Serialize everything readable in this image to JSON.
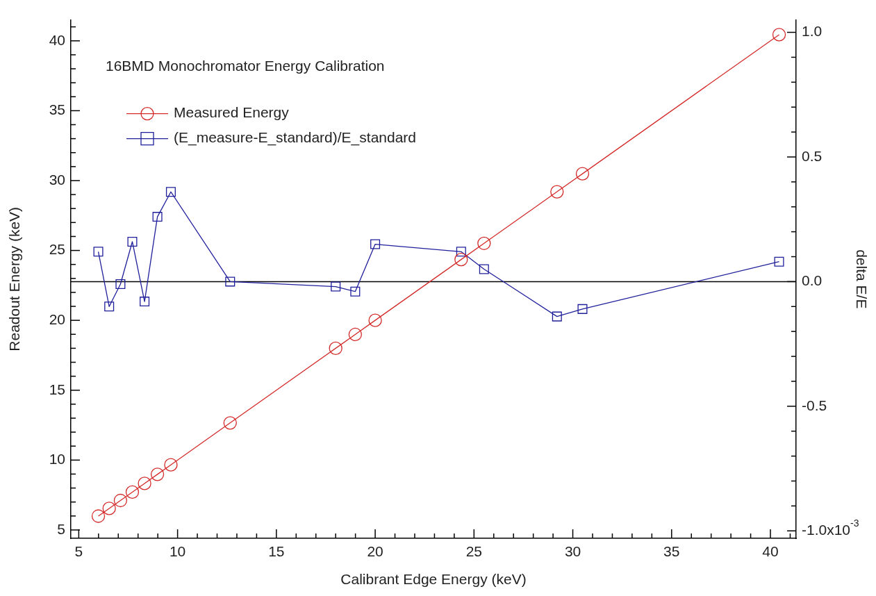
{
  "chart_data": {
    "type": "line",
    "title": "16BMD Monochromator Energy Calibration",
    "xlabel": "Calibrant Edge Energy (keV)",
    "ylabel": "Readout Energy (keV)",
    "y2label": "delta E/E",
    "series": [
      {
        "name": "Measured Energy",
        "color": "#d42a2a",
        "marker": "circle",
        "x": [
          5.99,
          6.54,
          7.11,
          7.71,
          8.33,
          8.98,
          9.66,
          12.66,
          18.0,
          18.99,
          20.0,
          24.35,
          25.51,
          29.2,
          30.49,
          40.44
        ],
        "values": [
          5.99,
          6.54,
          7.11,
          7.71,
          8.33,
          8.98,
          9.66,
          12.66,
          18.0,
          18.99,
          20.0,
          24.35,
          25.51,
          29.2,
          30.49,
          40.44
        ]
      },
      {
        "name": "(E_measure-E_standard)/E_standard",
        "color": "#1f1f9c",
        "marker": "square",
        "axis": "y2",
        "x": [
          5.99,
          6.54,
          7.11,
          7.71,
          8.33,
          8.98,
          9.66,
          12.66,
          18.0,
          18.99,
          20.0,
          24.35,
          25.51,
          29.2,
          30.49,
          40.44
        ],
        "values": [
          0.12,
          -0.1,
          -0.01,
          0.16,
          -0.08,
          0.26,
          0.36,
          0.0,
          -0.02,
          -0.04,
          0.15,
          0.12,
          0.05,
          -0.14,
          -0.11,
          0.08
        ]
      }
    ],
    "xlim": [
      4.6,
      41.3
    ],
    "ylim": [
      4.4,
      41.5
    ],
    "y2lim": [
      -1.03,
      1.05
    ],
    "annotations": [
      "x10$^{-3}$"
    ],
    "xticks": [
      5,
      {
        "value": 6,
        "label": null
      },
      {
        "value": 7,
        "label": null
      },
      {
        "value": 8,
        "label": null
      },
      {
        "value": 9,
        "label": null
      },
      10,
      {
        "value": 11,
        "label": null
      },
      {
        "value": 12,
        "label": null
      },
      {
        "value": 13,
        "label": null
      },
      {
        "value": 14,
        "label": null
      },
      15,
      {
        "value": 16,
        "label": null
      },
      {
        "value": 17,
        "label": null
      },
      {
        "value": 18,
        "label": null
      },
      {
        "value": 19,
        "label": null
      },
      20,
      {
        "value": 21,
        "label": null
      },
      {
        "value": 22,
        "label": null
      },
      {
        "value": 23,
        "label": null
      },
      {
        "value": 24,
        "label": null
      },
      25,
      {
        "value": 26,
        "label": null
      },
      {
        "value": 27,
        "label": null
      },
      {
        "value": 28,
        "label": null
      },
      {
        "value": 29,
        "label": null
      },
      30,
      {
        "value": 31,
        "label": null
      },
      {
        "value": 32,
        "label": null
      },
      {
        "value": 33,
        "label": null
      },
      {
        "value": 34,
        "label": null
      },
      35,
      {
        "value": 36,
        "label": null
      },
      {
        "value": 37,
        "label": null
      },
      {
        "value": 38,
        "label": null
      },
      {
        "value": 39,
        "label": null
      },
      40,
      {
        "value": 41,
        "label": null
      }
    ],
    "yticks": [
      5,
      {
        "value": 6,
        "label": null
      },
      {
        "value": 7,
        "label": null
      },
      {
        "value": 8,
        "label": null
      },
      {
        "value": 9,
        "label": null
      },
      10,
      {
        "value": 11,
        "label": null
      },
      {
        "value": 12,
        "label": null
      },
      {
        "value": 13,
        "label": null
      },
      {
        "value": 14,
        "label": null
      },
      15,
      {
        "value": 16,
        "label": null
      },
      {
        "value": 17,
        "label": null
      },
      {
        "value": 18,
        "label": null
      },
      {
        "value": 19,
        "label": null
      },
      20,
      {
        "value": 21,
        "label": null
      },
      {
        "value": 22,
        "label": null
      },
      {
        "value": 23,
        "label": null
      },
      {
        "value": 24,
        "label": null
      },
      25,
      {
        "value": 26,
        "label": null
      },
      {
        "value": 27,
        "label": null
      },
      {
        "value": 28,
        "label": null
      },
      {
        "value": 29,
        "label": null
      },
      30,
      {
        "value": 31,
        "label": null
      },
      {
        "value": 32,
        "label": null
      },
      {
        "value": 33,
        "label": null
      },
      {
        "value": 34,
        "label": null
      },
      35,
      {
        "value": 36,
        "label": null
      },
      {
        "value": 37,
        "label": null
      },
      {
        "value": 38,
        "label": null
      },
      {
        "value": 39,
        "label": null
      },
      40,
      {
        "value": 41,
        "label": null
      }
    ],
    "y2ticks": [
      {
        "value": -1,
        "label": "-1.0"
      },
      {
        "value": -0.9,
        "label": null
      },
      {
        "value": -0.8,
        "label": null
      },
      {
        "value": -0.7,
        "label": null
      },
      {
        "value": -0.6,
        "label": null
      },
      {
        "value": -0.5,
        "label": "-0.5"
      },
      {
        "value": -0.4,
        "label": null
      },
      {
        "value": -0.3,
        "label": null
      },
      {
        "value": -0.2,
        "label": null
      },
      {
        "value": -0.1,
        "label": null
      },
      {
        "value": 0,
        "label": "0.0"
      },
      {
        "value": 0.1,
        "label": null
      },
      {
        "value": 0.2,
        "label": null
      },
      {
        "value": 0.3,
        "label": null
      },
      {
        "value": 0.4,
        "label": null
      },
      {
        "value": 0.5,
        "label": "0.5"
      },
      {
        "value": 0.6,
        "label": null
      },
      {
        "value": 0.7,
        "label": null
      },
      {
        "value": 0.8,
        "label": null
      },
      {
        "value": 0.9,
        "label": null
      },
      {
        "value": 1,
        "label": "1.0"
      }
    ],
    "ref_lines": [
      {
        "axis": "y2",
        "value": 0,
        "color": "#000000"
      }
    ],
    "grid": false,
    "legend": "top left"
  }
}
